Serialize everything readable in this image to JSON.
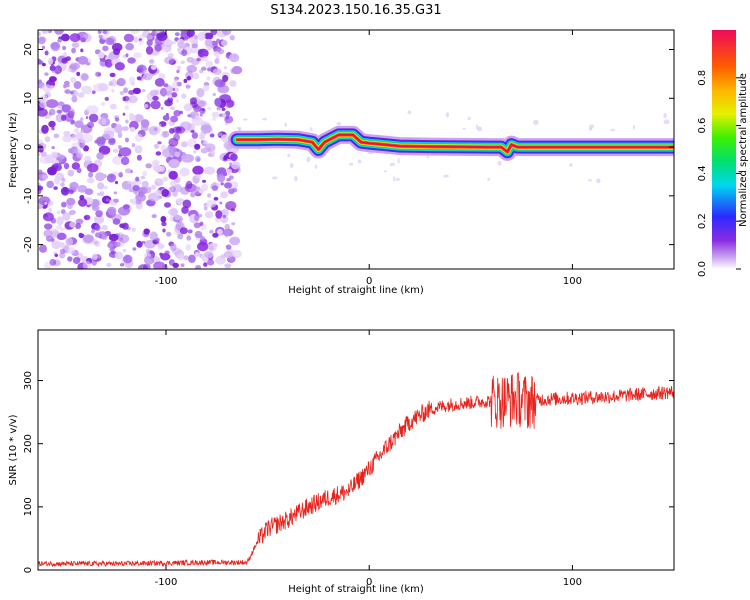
{
  "title": "S134.2023.150.16.35.G31",
  "chart_data": [
    {
      "type": "heatmap",
      "xlabel": "Height of straight line (km)",
      "ylabel": "Frequency (Hz)",
      "xlim": [
        -163,
        150
      ],
      "ylim": [
        -25,
        24
      ],
      "xticks": [
        -100,
        0,
        100
      ],
      "yticks": [
        -20,
        -10,
        0,
        10,
        20
      ],
      "colorbar": {
        "label": "Normalized spectral amplitude",
        "range": [
          0,
          1
        ],
        "ticks": [
          0.0,
          0.2,
          0.4,
          0.6,
          0.8
        ],
        "colormap": "rainbow"
      },
      "noise_region_x": [
        -163,
        -65
      ],
      "ridge": {
        "x": [
          -65,
          -55,
          -45,
          -35,
          -28,
          -25,
          -22,
          -15,
          -8,
          -4,
          0,
          5,
          15,
          30,
          60,
          65,
          68,
          70,
          73,
          80,
          100,
          120,
          150
        ],
        "freq": [
          1.5,
          1.5,
          1.6,
          1.5,
          1.0,
          -0.5,
          1.0,
          2.5,
          2.5,
          1.0,
          0.8,
          0.6,
          0.2,
          0.1,
          0.0,
          0.0,
          -1.0,
          0.5,
          0.0,
          0.0,
          0.0,
          0.0,
          0.0
        ]
      }
    },
    {
      "type": "line",
      "xlabel": "Height of straight line (km)",
      "ylabel": "SNR (10 * v/v)",
      "xlim": [
        -163,
        150
      ],
      "ylim": [
        0,
        380
      ],
      "xticks": [
        -100,
        0,
        100
      ],
      "yticks": [
        0,
        100,
        200,
        300
      ],
      "color": "#e8221c",
      "series": [
        {
          "x": [
            -163,
            -120,
            -80,
            -60,
            -55,
            -50,
            -40,
            -30,
            -20,
            -10,
            0,
            10,
            20,
            30,
            40,
            50,
            60,
            65,
            70,
            75,
            78,
            80,
            85,
            100,
            120,
            150
          ],
          "values": [
            10,
            10,
            12,
            12,
            45,
            65,
            80,
            100,
            115,
            125,
            160,
            200,
            235,
            255,
            262,
            265,
            268,
            268,
            270,
            270,
            265,
            268,
            270,
            272,
            275,
            282
          ]
        }
      ]
    }
  ]
}
